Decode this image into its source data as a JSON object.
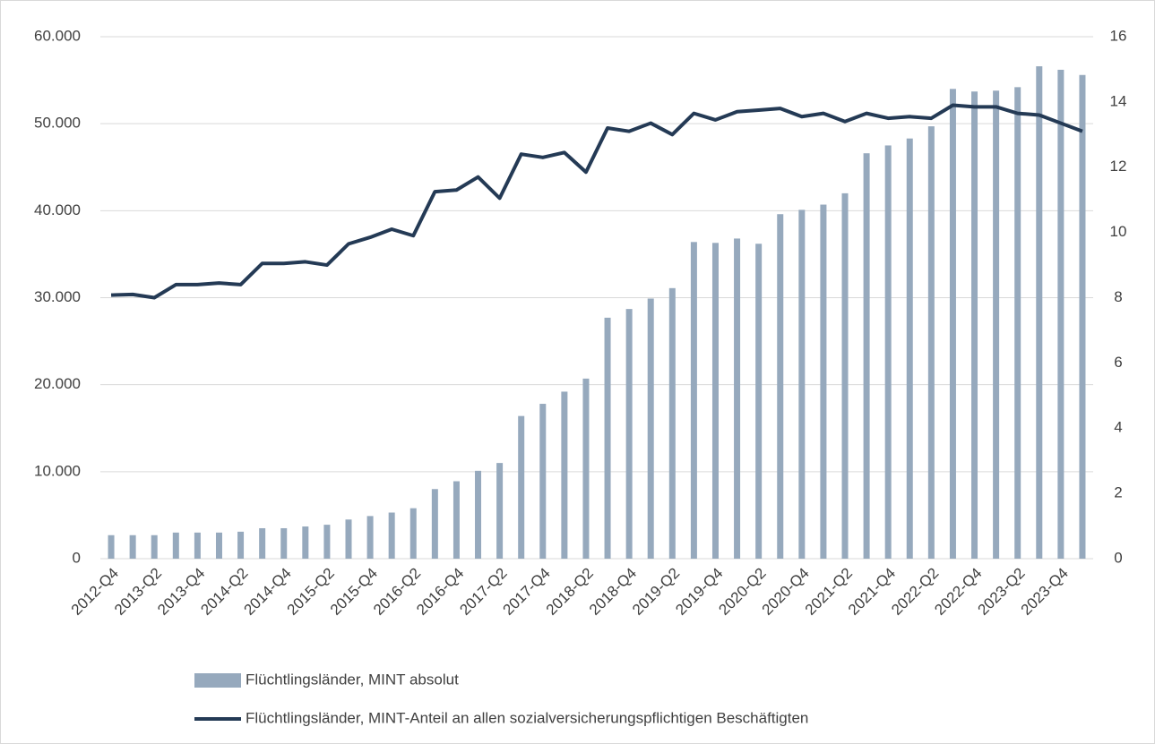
{
  "chart_data": {
    "type": "bar_line",
    "categories": [
      "2012-Q4",
      null,
      "2013-Q2",
      null,
      "2013-Q4",
      null,
      "2014-Q2",
      null,
      "2014-Q4",
      null,
      "2015-Q2",
      null,
      "2015-Q4",
      null,
      "2016-Q2",
      null,
      "2016-Q4",
      null,
      "2017-Q2",
      null,
      "2017-Q4",
      null,
      "2018-Q2",
      null,
      "2018-Q4",
      null,
      "2019-Q2",
      null,
      "2019-Q4",
      null,
      "2020-Q2",
      null,
      "2020-Q4",
      null,
      "2021-Q2",
      null,
      "2021-Q4",
      null,
      "2022-Q2",
      null,
      "2022-Q4",
      null,
      "2023-Q2",
      null,
      "2023-Q4",
      null
    ],
    "series": [
      {
        "name": "Flüchtlingsländer, MINT absolut",
        "type": "bar",
        "color": "#96a9bd",
        "axis": "y",
        "values": [
          2700,
          2700,
          2700,
          3000,
          3000,
          3000,
          3100,
          3500,
          3500,
          3700,
          3900,
          4500,
          4900,
          5300,
          5800,
          8000,
          8900,
          10100,
          11000,
          16400,
          17800,
          19200,
          20700,
          27700,
          28700,
          29900,
          31100,
          36400,
          36300,
          36800,
          36200,
          39600,
          40100,
          40700,
          42000,
          46600,
          47500,
          48300,
          49700,
          54000,
          53700,
          53800,
          54200,
          56600,
          56200,
          55600
        ]
      },
      {
        "name": "Flüchtlingsländer, MINT-Anteil an allen sozialversicherungspflichtigen Beschäftigten",
        "type": "line",
        "color": "#243a55",
        "axis": "y2",
        "values": [
          8.08,
          8.1,
          8.0,
          8.4,
          8.4,
          8.45,
          8.4,
          9.05,
          9.05,
          9.1,
          9.0,
          9.65,
          9.85,
          10.1,
          9.9,
          11.25,
          11.3,
          11.7,
          11.05,
          12.4,
          12.3,
          12.45,
          11.85,
          13.2,
          13.1,
          13.35,
          13.0,
          13.65,
          13.45,
          13.7,
          13.75,
          13.8,
          13.55,
          13.65,
          13.4,
          13.65,
          13.5,
          13.55,
          13.5,
          13.9,
          13.85,
          13.85,
          13.65,
          13.6,
          13.35,
          13.1
        ]
      }
    ],
    "ylim": [
      0,
      60000
    ],
    "yticks": [
      0,
      {
        "value": 10000,
        "label": "10.000"
      },
      {
        "value": 20000,
        "label": "20.000"
      },
      {
        "value": 30000,
        "label": "30.000"
      },
      {
        "value": 40000,
        "label": "40.000"
      },
      {
        "value": 50000,
        "label": "50.000"
      },
      {
        "value": 60000,
        "label": "60.000"
      }
    ],
    "y2lim": [
      0,
      16
    ],
    "y2ticks": [
      0,
      2,
      4,
      6,
      8,
      10,
      12,
      14,
      16
    ],
    "grid": true,
    "legend": "bottom"
  }
}
